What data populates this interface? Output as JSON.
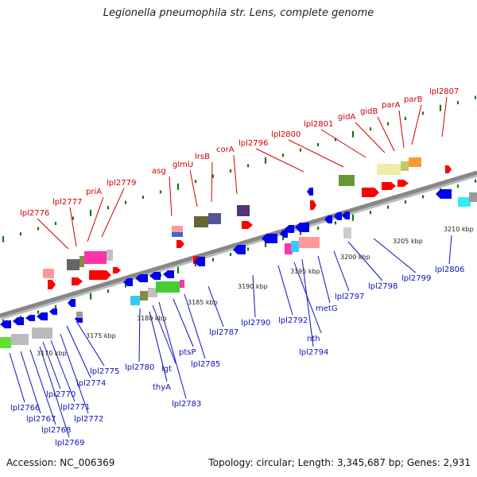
{
  "title": "Legionella pneumophila str. Lens, complete genome",
  "footer": {
    "accession": "Accession: NC_006369",
    "info": "Topology: circular; Length: 3,345,687 bp; Genes: 2,931"
  },
  "colors": {
    "forward_label": "#cc0000",
    "reverse_label": "#1010bb",
    "forward_gene": "#ff0000",
    "reverse_gene": "#0000ee",
    "backbone": "#888888",
    "tick": "#117711"
  },
  "scale": {
    "unit": "kbp",
    "labels": [
      "3170 kbp",
      "3175 kbp",
      "3180 kbp",
      "3185 kbp",
      "3190 kbp",
      "3195 kbp",
      "3200 kbp",
      "3205 kbp",
      "3210 kbp"
    ]
  },
  "top_labels": [
    "lpl2776",
    "lpl2777",
    "priA",
    "lpl2779",
    "asg",
    "glmU",
    "lrsB",
    "corA",
    "lpl2796",
    "lpl2800",
    "lpl2801",
    "gidA",
    "gidB",
    "parA",
    "parB",
    "lpl2807"
  ],
  "bottom_labels": [
    "lpl2766",
    "lpl2767",
    "lpl2768",
    "lpl2769",
    "lpl2770",
    "lpl2771",
    "lpl2772",
    "lpl2774",
    "lpl2775",
    "lpl2780",
    "lgt",
    "thyA",
    "lpl2783",
    "ptsP",
    "lpl2785",
    "lpl2787",
    "lpl2790",
    "lpl2792",
    "nth",
    "lpl2794",
    "metG",
    "lpl2797",
    "lpl2798",
    "lpl2799",
    "lpl2806"
  ]
}
